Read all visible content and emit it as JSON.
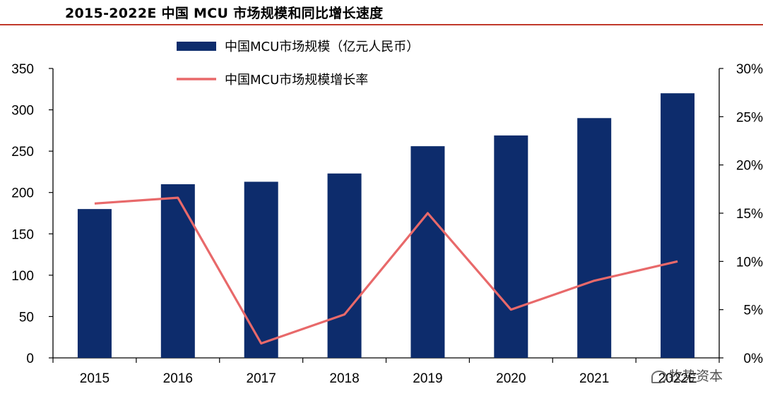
{
  "title": "2015-2022E 中国 MCU 市场规模和同比增长速度",
  "colors": {
    "bar": "#0d2c6c",
    "line": "#e8696a",
    "rule": "#c0392b"
  },
  "watermark": "牧势资本",
  "chart_data": {
    "type": "bar",
    "categories": [
      "2015",
      "2016",
      "2017",
      "2018",
      "2019",
      "2020",
      "2021",
      "2022E"
    ],
    "series": [
      {
        "name": "中国MCU市场规模（亿元人民币）",
        "type": "bar",
        "axis": "left",
        "values": [
          180,
          210,
          213,
          223,
          256,
          269,
          290,
          320
        ]
      },
      {
        "name": "中国MCU市场规模增长率",
        "type": "line",
        "axis": "right",
        "values": [
          16.0,
          16.6,
          1.5,
          4.5,
          15.0,
          5.0,
          8.0,
          10.0
        ]
      }
    ],
    "y_left": {
      "min": 0,
      "max": 350,
      "ticks": [
        0,
        50,
        100,
        150,
        200,
        250,
        300,
        350
      ]
    },
    "y_right": {
      "min": 0,
      "max": 30,
      "ticks": [
        "0%",
        "5%",
        "10%",
        "15%",
        "20%",
        "25%",
        "30%"
      ]
    },
    "xlabel": "",
    "ylabel": "",
    "legend_position": "top-center",
    "grid": false
  }
}
